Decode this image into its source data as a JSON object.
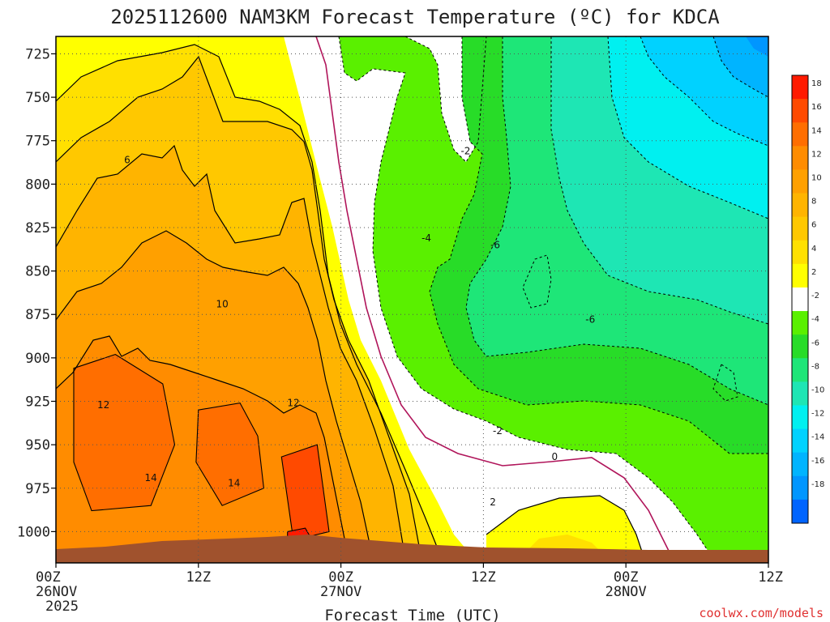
{
  "chart_data": {
    "type": "heatmap",
    "title": "2025112600 NAM3KM Forecast Temperature (ºC) for KDCA",
    "xlabel": "Forecast Time (UTC)",
    "ylabel": "",
    "credit": "coolwx.com/models",
    "x_unit": "forecast hour",
    "x_range": [
      0,
      60
    ],
    "y_range": [
      715,
      1018
    ],
    "y_ticks": [
      725,
      750,
      775,
      800,
      825,
      850,
      875,
      900,
      925,
      950,
      975,
      1000
    ],
    "x_ticks": [
      {
        "hour": 0,
        "label": "00Z",
        "date": "26NOV",
        "year": "2025"
      },
      {
        "hour": 12,
        "label": "12Z",
        "date": "",
        "year": ""
      },
      {
        "hour": 24,
        "label": "00Z",
        "date": "27NOV",
        "year": ""
      },
      {
        "hour": 36,
        "label": "12Z",
        "date": "",
        "year": ""
      },
      {
        "hour": 48,
        "label": "00Z",
        "date": "28NOV",
        "year": ""
      },
      {
        "hour": 60,
        "label": "12Z",
        "date": "",
        "year": ""
      }
    ],
    "colorbar": {
      "levels": [
        18,
        16,
        14,
        12,
        10,
        8,
        6,
        4,
        2,
        -2,
        -4,
        -6,
        -8,
        -10,
        -12,
        -14,
        -16,
        -18
      ],
      "colors": [
        "#ff1a00",
        "#ff4a00",
        "#ff6e00",
        "#ff8c00",
        "#ffa000",
        "#ffb400",
        "#ffc800",
        "#ffe000",
        "#ffff00",
        "#ffffff",
        "#5af000",
        "#28dc28",
        "#1ee678",
        "#1ee6b4",
        "#00f0f0",
        "#00d2ff",
        "#00b4ff",
        "#0096ff",
        "#0064ff"
      ]
    },
    "contour_labels": [
      {
        "value": "6",
        "hour": 6.0,
        "pressure": 786
      },
      {
        "value": "10",
        "hour": 14.0,
        "pressure": 869
      },
      {
        "value": "12",
        "hour": 4.0,
        "pressure": 927
      },
      {
        "value": "12",
        "hour": 20.0,
        "pressure": 926
      },
      {
        "value": "14",
        "hour": 8.0,
        "pressure": 969
      },
      {
        "value": "14",
        "hour": 15.0,
        "pressure": 972
      },
      {
        "value": "-2",
        "hour": 34.5,
        "pressure": 781
      },
      {
        "value": "-4",
        "hour": 31.2,
        "pressure": 831
      },
      {
        "value": "-6",
        "hour": 37.0,
        "pressure": 835
      },
      {
        "value": "-6",
        "hour": 45.0,
        "pressure": 878
      },
      {
        "value": "-2",
        "hour": 37.2,
        "pressure": 942
      },
      {
        "value": "0",
        "hour": 42.0,
        "pressure": 957
      },
      {
        "value": "2",
        "hour": 36.8,
        "pressure": 983
      }
    ],
    "regions": [
      {
        "name": "temp-ge-14-west",
        "color": "#ff6e00",
        "points": [
          [
            1.5,
            906
          ],
          [
            5,
            898
          ],
          [
            9,
            915
          ],
          [
            10,
            950
          ],
          [
            8,
            985
          ],
          [
            3,
            988
          ],
          [
            1.5,
            960
          ]
        ]
      },
      {
        "name": "temp-ge-14-mid",
        "color": "#ff6e00",
        "points": [
          [
            12,
            930
          ],
          [
            15.5,
            926
          ],
          [
            17,
            945
          ],
          [
            17.5,
            975
          ],
          [
            14,
            985
          ],
          [
            11.8,
            960
          ]
        ]
      },
      {
        "name": "temp-ge-16-mid",
        "color": "#ff4a00",
        "points": [
          [
            19,
            957
          ],
          [
            22,
            950
          ],
          [
            23,
            1000
          ],
          [
            20,
            1005
          ]
        ]
      },
      {
        "name": "temp-ge-18",
        "color": "#ff1a00",
        "points": [
          [
            19.5,
            1000
          ],
          [
            21,
            998
          ],
          [
            22,
            1010
          ],
          [
            19.5,
            1010
          ]
        ]
      }
    ],
    "terrain_color": "#a0522d"
  }
}
